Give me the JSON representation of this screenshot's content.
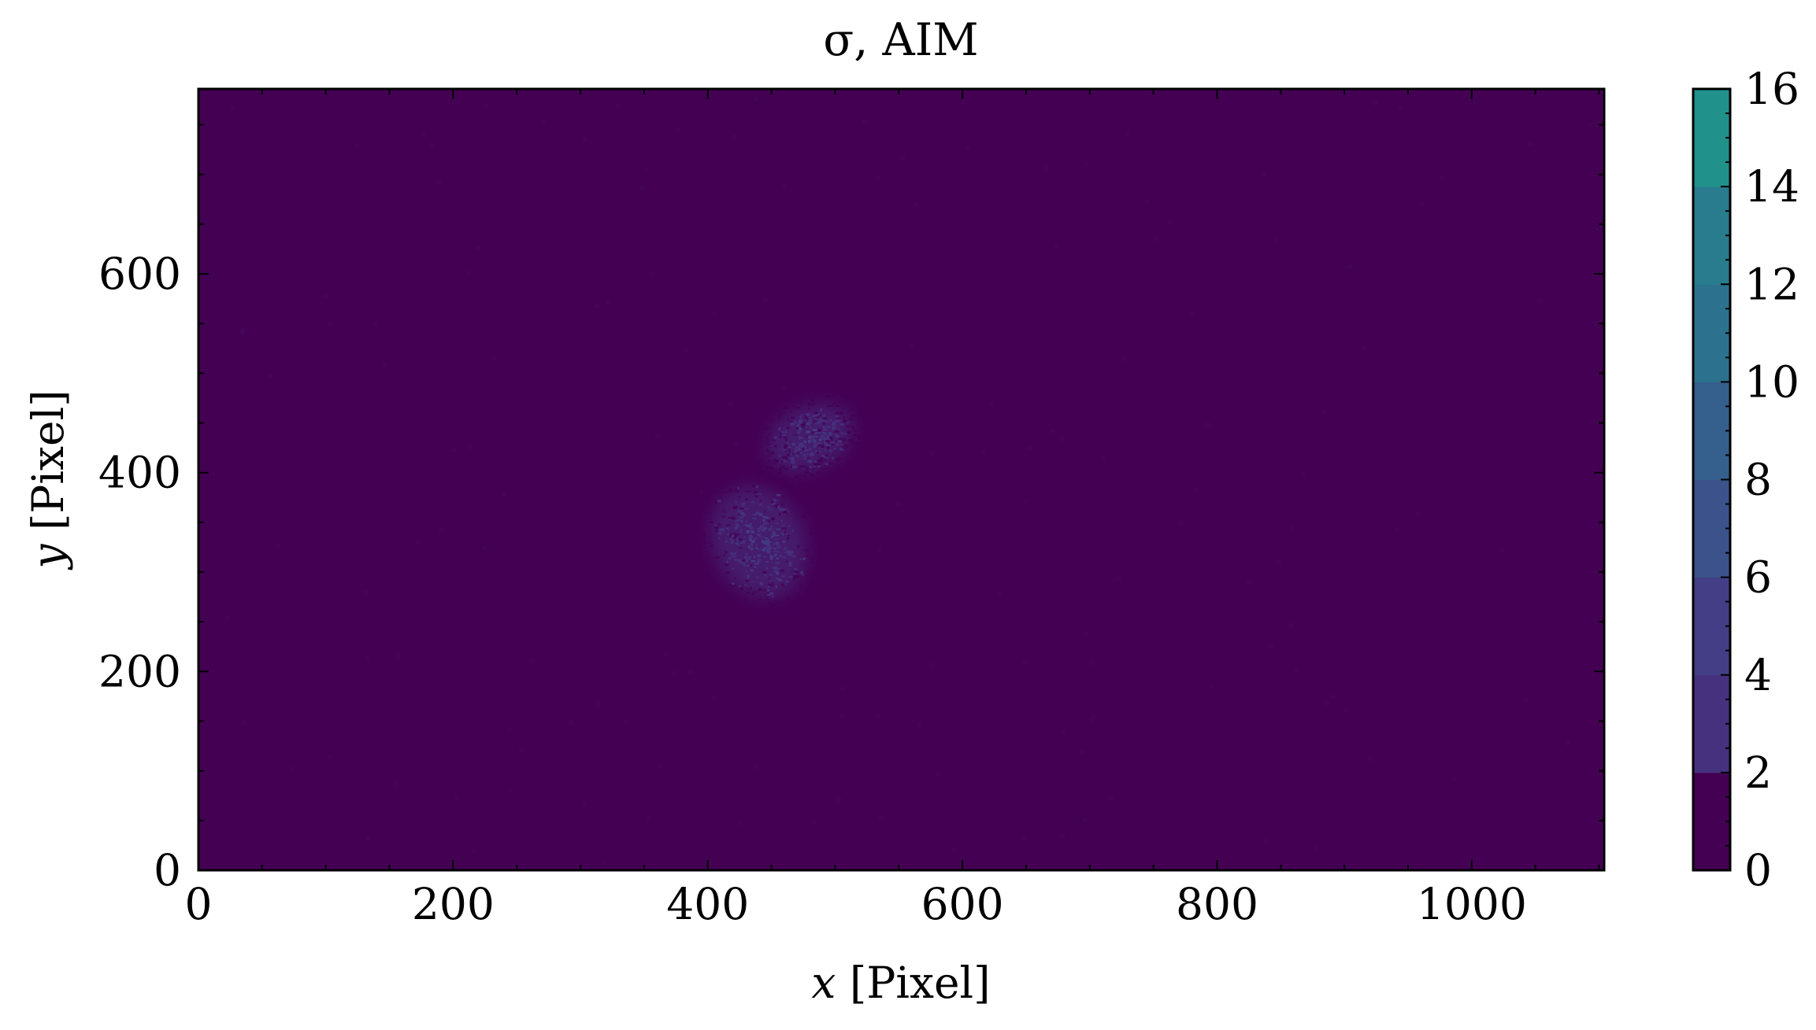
{
  "chart_data": {
    "type": "heatmap",
    "title": "σ, AIM",
    "xlabel_var": "x",
    "xlabel_unit": " [Pixel]",
    "ylabel_var": "y",
    "ylabel_unit": " [Pixel]",
    "xlim": [
      0,
      1104
    ],
    "ylim": [
      0,
      786
    ],
    "x_ticks": [
      0,
      200,
      400,
      600,
      800,
      1000
    ],
    "y_ticks": [
      0,
      200,
      400,
      600
    ],
    "x_tick_labels": [
      "0",
      "200",
      "400",
      "600",
      "800",
      "1000"
    ],
    "y_tick_labels": [
      "0",
      "200",
      "400",
      "600"
    ],
    "colorbar": {
      "min": 0,
      "max": 16,
      "ticks": [
        0,
        2,
        4,
        6,
        8,
        10,
        12,
        14,
        16
      ],
      "tick_labels": [
        "0",
        "2",
        "4",
        "6",
        "8",
        "10",
        "12",
        "14",
        "16"
      ],
      "levels": [
        0,
        2,
        4,
        6,
        8,
        10,
        12,
        14,
        16
      ],
      "colormap": "viridis",
      "level_colors": [
        "#440154",
        "#46317e",
        "#433e85",
        "#3b528b",
        "#355f8d",
        "#2c728e",
        "#287c8e",
        "#21918c"
      ]
    },
    "background_value": 0.4,
    "features": [
      {
        "name": "upper blob",
        "x_center": 480,
        "y_center": 435,
        "x_extent": [
          450,
          540
        ],
        "y_extent": [
          395,
          480
        ],
        "peak_value": 5
      },
      {
        "name": "lower blob",
        "x_center": 440,
        "y_center": 330,
        "x_extent": [
          400,
          490
        ],
        "y_extent": [
          245,
          400
        ],
        "peak_value": 6
      }
    ],
    "grid": false
  }
}
